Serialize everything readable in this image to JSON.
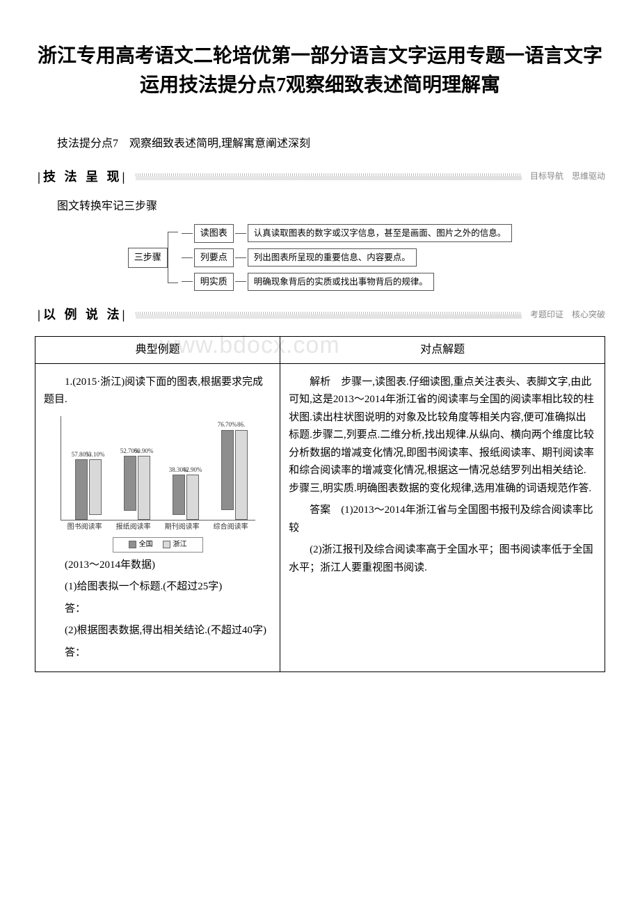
{
  "title": "浙江专用高考语文二轮培优第一部分语言文字运用专题一语言文字运用技法提分点7观察细致表述简明理解寓",
  "subtitle": "技法提分点7　观察细致表述简明,理解寓意阐述深刻",
  "section1": {
    "label": "技 法 呈 现",
    "right": "目标导航　思维驱动"
  },
  "method_line": "图文转换牢记三步骤",
  "diagram": {
    "root": "三步骤",
    "rows": [
      {
        "box": "读图表",
        "desc": "认真读取图表的数字或汉字信息，甚至是画面、图片之外的信息。"
      },
      {
        "box": "列要点",
        "desc": "列出图表所呈现的重要信息、内容要点。"
      },
      {
        "box": "明实质",
        "desc": "明确现象背后的实质或找出事物背后的规律。"
      }
    ]
  },
  "section2": {
    "label": "以 例 说 法",
    "right": "考题印证　核心突破"
  },
  "table_headers": {
    "left": "典型例题",
    "right": "对点解题"
  },
  "watermark": "www.bdocx.com",
  "example": {
    "q_intro": "1.(2015·浙江)阅读下面的图表,根据要求完成题目.",
    "year_note": "(2013～2014年数据)",
    "q1": "(1)给图表拟一个标题.(不超过25字)",
    "q2": "(2)根据图表数据,得出相关结论.(不超过40字)",
    "ans_label": "答：",
    "analysis_label": "解析",
    "analysis": "步骤一,读图表.仔细读图,重点关注表头、表脚文字,由此可知,这是2013～2014年浙江省的阅读率与全国的阅读率相比较的柱状图.读出柱状图说明的对象及比较角度等相关内容,便可准确拟出标题.步骤二,列要点.二维分析,找出规律.从纵向、横向两个维度比较分析数据的增减变化情况,即图书阅读率、报纸阅读率、期刊阅读率和综合阅读率的增减变化情况,根据这一情况总结罗列出相关结论.步骤三,明实质.明确图表数据的变化规律,选用准确的词语规范作答.",
    "answer_label": "答案",
    "a1": "(1)2013～2014年浙江省与全国图书报刊及综合阅读率比较",
    "a2": "(2)浙江报刊及综合阅读率高于全国水平；图书阅读率低于全国水平；浙江人要重视图书阅读."
  },
  "chart": {
    "type": "bar",
    "categories": [
      "图书阅读率",
      "报纸阅读率",
      "期刊阅读率",
      "综合阅读率"
    ],
    "series": [
      {
        "name": "全国",
        "color": "#8e8e8e",
        "values": [
          57.8,
          52.7,
          38.3,
          76.7
        ]
      },
      {
        "name": "浙江",
        "color": "#d9d9d9",
        "values": [
          53.1,
          60.9,
          42.9,
          86.0
        ]
      }
    ],
    "value_labels": [
      [
        "57.80%",
        "53.10%"
      ],
      [
        "52.70%",
        "60.90%"
      ],
      [
        "38.30%",
        "42.90%"
      ],
      [
        "76.70%",
        "86."
      ]
    ],
    "ylim": [
      0,
      100
    ],
    "background_color": "#ffffff",
    "axis_color": "#606060",
    "label_fontsize": 9,
    "legend_border": "#888888"
  }
}
